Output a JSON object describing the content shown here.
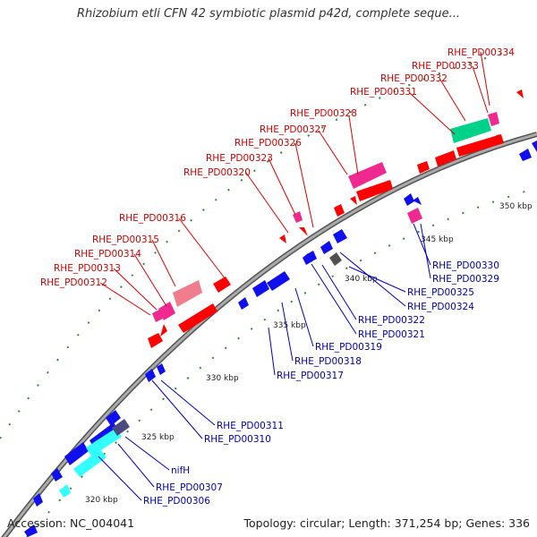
{
  "title": "Rhizobium etli CFN 42 symbiotic plasmid p42d, complete seque...",
  "accession_text": "Accession: NC_004041",
  "summary_text": "Topology: circular; Length: 371,254 bp; Genes: 336",
  "scale_labels": [
    "320 kbp",
    "325 kbp",
    "330 kbp",
    "335 kbp",
    "340 kbp",
    "345 kbp",
    "350 kbp"
  ],
  "outer_gene_labels": [
    "RHE_PD00312",
    "RHE_PD00313",
    "RHE_PD00314",
    "RHE_PD00315",
    "RHE_PD00316",
    "RHE_PD00320",
    "RHE_PD00323",
    "RHE_PD00326",
    "RHE_PD00327",
    "RHE_PD00328",
    "RHE_PD00331",
    "RHE_PD00332",
    "RHE_PD00333",
    "RHE_PD00334"
  ],
  "inner_gene_labels": [
    "RHE_PD00330",
    "RHE_PD00329",
    "RHE_PD00325",
    "RHE_PD00324",
    "RHE_PD00322",
    "RHE_PD00321",
    "RHE_PD00319",
    "RHE_PD00318",
    "RHE_PD00317",
    "RHE_PD00311",
    "RHE_PD00310",
    "nifH",
    "RHE_PD00307",
    "RHE_PD00306"
  ],
  "colors": {
    "outer_label": "#cc0000",
    "inner_label": "#0000aa",
    "backbone": "#888888",
    "tick": "#2e8b2e",
    "red": "#ff0000",
    "blue": "#1010ee",
    "pink": "#ee2a90",
    "light_pink": "#ef7d8e",
    "cyan": "#33ffff",
    "teal": "#00d28a",
    "slate": "#4a4a80",
    "grey": "#505050"
  }
}
